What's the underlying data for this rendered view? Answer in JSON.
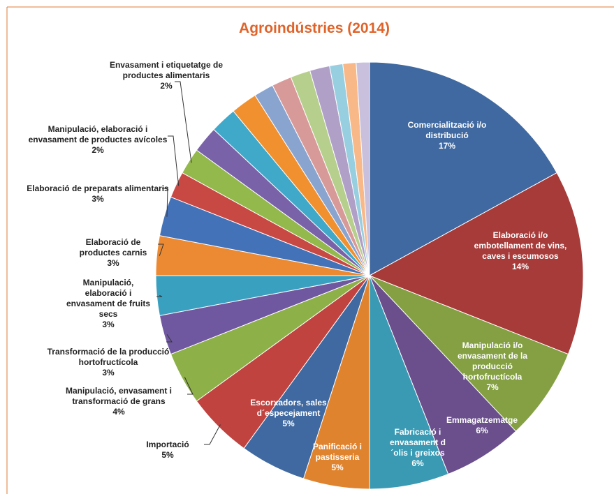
{
  "chart_data": {
    "type": "pie",
    "title": "Agroindústries (2014)",
    "categories": [
      "Comercialització i/o distribució",
      "Elaboració i/o embotellament de vins, caves i escumosos",
      "Manipulació i/o envasament de la producció hortofructícola",
      "Emmagatzematge",
      "Fabricació i envasament d´olis i greixos",
      "Panificació i pastisseria",
      "Escorxadors, sales d´especejament",
      "Importació",
      "Manipulació, envasament i transformació de grans",
      "Transformació de la producció hortofructícola",
      "Manipulació, elaboració i envasament de fruits secs",
      "Elaboració de productes carnis",
      "Elaboració de preparats alimentaris",
      "Manipulació, elaboració i envasament de productes avícoles",
      "Envasament i etiquetatge de productes alimentaris",
      null,
      null,
      null,
      null,
      null,
      null,
      null,
      null,
      null,
      null
    ],
    "values": [
      17,
      14,
      7,
      6,
      6,
      5,
      5,
      5,
      4,
      3,
      3,
      3,
      3,
      2,
      2,
      2,
      2,
      2,
      1.5,
      1.5,
      1.5,
      1.5,
      1,
      1,
      1
    ],
    "value_labels": [
      "17%",
      "14%",
      "7%",
      "6%",
      "6%",
      "5%",
      "5%",
      "5%",
      "4%",
      "3%",
      "3%",
      "3%",
      "3%",
      "2%",
      "2%",
      null,
      null,
      null,
      null,
      null,
      null,
      null,
      null,
      null,
      null
    ],
    "colors": [
      "#3f69a0",
      "#a63b39",
      "#84a043",
      "#6a4f8c",
      "#3a9ab4",
      "#e0832f",
      "#3f69a0",
      "#c0433f",
      "#8db049",
      "#7058a0",
      "#3aa0c0",
      "#eb8a33",
      "#4472b8",
      "#c84844",
      "#93b84c",
      "#7a62a8",
      "#40a8c8",
      "#f0902f",
      "#8aa4d0",
      "#d89a98",
      "#b6cf8c",
      "#b0a0c8",
      "#98cfe0",
      "#f8b888",
      "#c8c0dc"
    ]
  }
}
